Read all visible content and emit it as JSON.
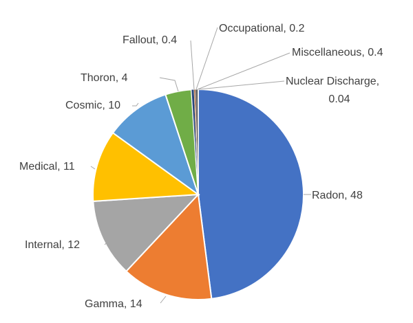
{
  "chart_data": {
    "type": "pie",
    "title": "",
    "start": "12 o'clock, clockwise",
    "categories": [
      "Radon",
      "Gamma",
      "Internal",
      "Medical",
      "Cosmic",
      "Thoron",
      "Fallout",
      "Occupational",
      "Miscellaneous",
      "Nuclear Discharge"
    ],
    "values": [
      48,
      14,
      12,
      11,
      10,
      4,
      0.4,
      0.2,
      0.4,
      0.04
    ],
    "value_labels": [
      "48",
      "14",
      "12",
      "11",
      "10",
      "4",
      "0.4",
      "0.2",
      "0.4",
      "0.04"
    ],
    "colors": [
      "#4472C4",
      "#ED7D31",
      "#A5A5A5",
      "#FFC000",
      "#5B9BD5",
      "#70AD47",
      "#264478",
      "#9E480E",
      "#636363",
      "#997300"
    ],
    "legend": "none",
    "data_labels": "outside with leader lines"
  }
}
